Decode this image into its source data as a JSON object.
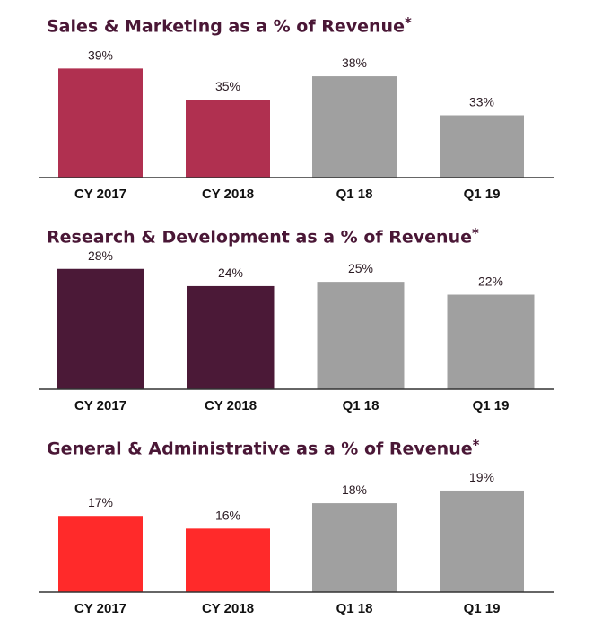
{
  "chart_data": [
    {
      "type": "bar",
      "title": "Sales & Marketing as a % of Revenue",
      "title_mark": "*",
      "categories": [
        "CY 2017",
        "CY 2018",
        "Q1 18",
        "Q1 19"
      ],
      "values": [
        39,
        35,
        38,
        33
      ],
      "value_labels": [
        "39%",
        "35%",
        "38%",
        "33%"
      ],
      "colors": [
        "#b03050",
        "#b03050",
        "#a0a0a0",
        "#a0a0a0"
      ],
      "ylim": [
        25,
        41
      ],
      "grid": false,
      "legend": "none"
    },
    {
      "type": "bar",
      "title": "Research & Development as a % of Revenue",
      "title_mark": "*",
      "categories": [
        "CY 2017",
        "CY 2018",
        "Q1 18",
        "Q1 19"
      ],
      "values": [
        28,
        24,
        25,
        22
      ],
      "value_labels": [
        "28%",
        "24%",
        "25%",
        "22%"
      ],
      "colors": [
        "#4b1937",
        "#4b1937",
        "#a0a0a0",
        "#a0a0a0"
      ],
      "ylim": [
        0,
        29.2
      ],
      "grid": false,
      "legend": "none"
    },
    {
      "type": "bar",
      "title": "General & Administrative as a % of Revenue",
      "title_mark": "*",
      "categories": [
        "CY 2017",
        "CY 2018",
        "Q1 18",
        "Q1 19"
      ],
      "values": [
        17,
        16,
        18,
        19
      ],
      "value_labels": [
        "17%",
        "16%",
        "18%",
        "19%"
      ],
      "colors": [
        "#ff2a2a",
        "#ff2a2a",
        "#a0a0a0",
        "#a0a0a0"
      ],
      "ylim": [
        11,
        20.2
      ],
      "grid": false,
      "legend": "none"
    }
  ]
}
